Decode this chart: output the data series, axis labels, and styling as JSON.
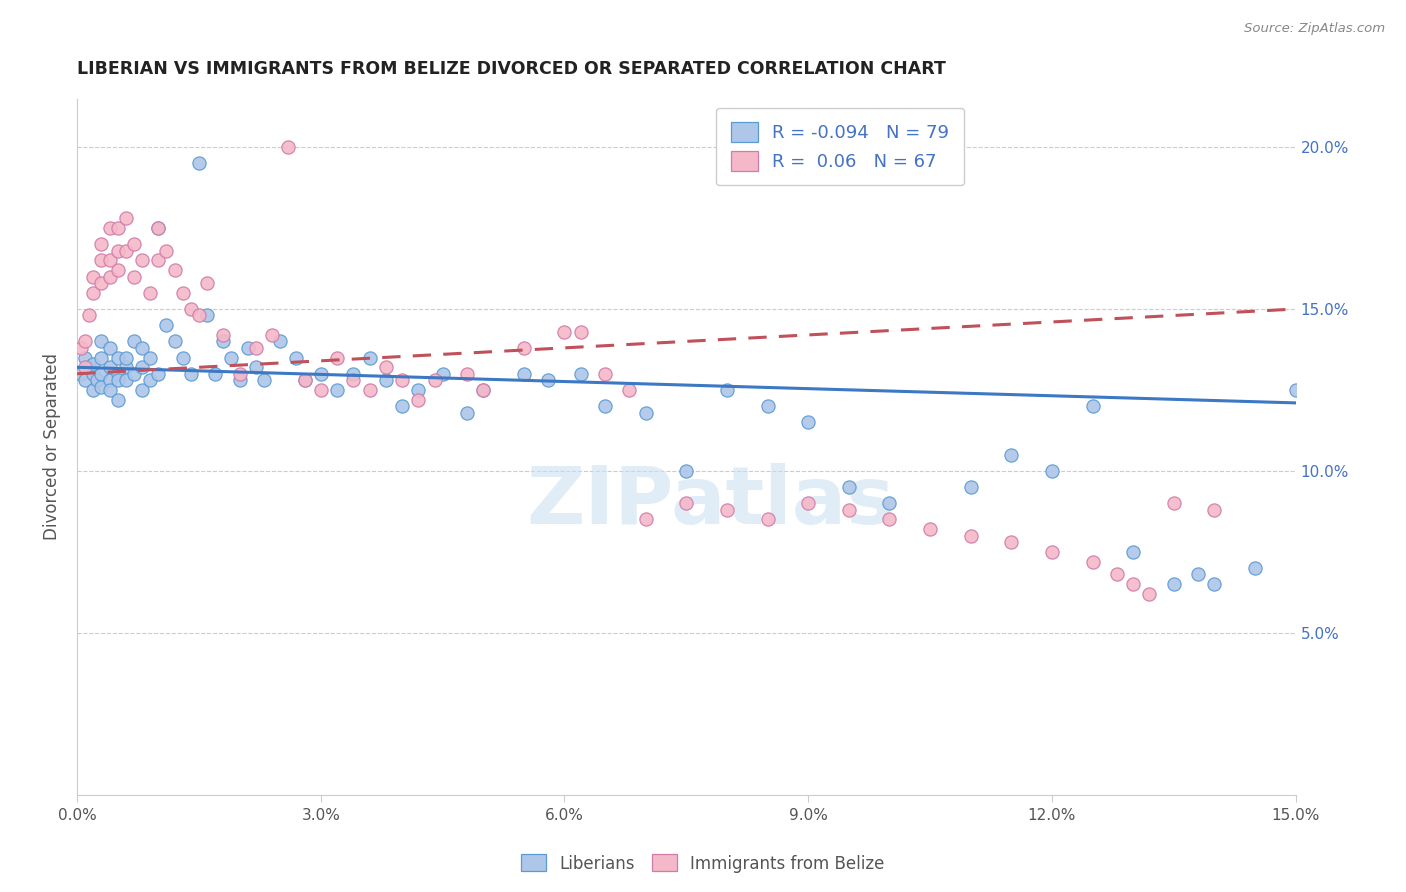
{
  "title": "LIBERIAN VS IMMIGRANTS FROM BELIZE DIVORCED OR SEPARATED CORRELATION CHART",
  "source": "Source: ZipAtlas.com",
  "ylabel": "Divorced or Separated",
  "legend_label1": "Liberians",
  "legend_label2": "Immigrants from Belize",
  "R1": -0.094,
  "N1": 79,
  "R2": 0.06,
  "N2": 67,
  "color1": "#aec6e8",
  "color2": "#f4b8c8",
  "edge1": "#5b9bd5",
  "edge2": "#d17baa",
  "trendline1_color": "#3c78c3",
  "trendline2_color": "#c0505a",
  "xmin": 0.0,
  "xmax": 0.15,
  "ymin": 0.0,
  "ymax": 0.215,
  "x_ticks": [
    0.0,
    0.03,
    0.06,
    0.09,
    0.12,
    0.15
  ],
  "x_tick_labels": [
    "0.0%",
    "3.0%",
    "6.0%",
    "9.0%",
    "12.0%",
    "15.0%"
  ],
  "y_tick_positions": [
    0.05,
    0.1,
    0.15,
    0.2
  ],
  "y_tick_labels": [
    "5.0%",
    "10.0%",
    "15.0%",
    "20.0%"
  ],
  "blue_x": [
    0.0005,
    0.001,
    0.001,
    0.0015,
    0.002,
    0.002,
    0.002,
    0.0025,
    0.003,
    0.003,
    0.003,
    0.003,
    0.004,
    0.004,
    0.004,
    0.004,
    0.005,
    0.005,
    0.005,
    0.005,
    0.006,
    0.006,
    0.006,
    0.007,
    0.007,
    0.008,
    0.008,
    0.008,
    0.009,
    0.009,
    0.01,
    0.01,
    0.011,
    0.012,
    0.013,
    0.014,
    0.015,
    0.016,
    0.017,
    0.018,
    0.019,
    0.02,
    0.021,
    0.022,
    0.023,
    0.025,
    0.027,
    0.028,
    0.03,
    0.032,
    0.034,
    0.036,
    0.038,
    0.04,
    0.042,
    0.045,
    0.048,
    0.05,
    0.055,
    0.058,
    0.062,
    0.065,
    0.07,
    0.075,
    0.08,
    0.085,
    0.09,
    0.095,
    0.1,
    0.11,
    0.115,
    0.12,
    0.125,
    0.13,
    0.135,
    0.138,
    0.14,
    0.145,
    0.15
  ],
  "blue_y": [
    0.13,
    0.128,
    0.135,
    0.132,
    0.125,
    0.13,
    0.133,
    0.128,
    0.13,
    0.126,
    0.135,
    0.14,
    0.128,
    0.132,
    0.138,
    0.125,
    0.13,
    0.135,
    0.128,
    0.122,
    0.132,
    0.128,
    0.135,
    0.13,
    0.14,
    0.125,
    0.138,
    0.132,
    0.128,
    0.135,
    0.13,
    0.175,
    0.145,
    0.14,
    0.135,
    0.13,
    0.195,
    0.148,
    0.13,
    0.14,
    0.135,
    0.128,
    0.138,
    0.132,
    0.128,
    0.14,
    0.135,
    0.128,
    0.13,
    0.125,
    0.13,
    0.135,
    0.128,
    0.12,
    0.125,
    0.13,
    0.118,
    0.125,
    0.13,
    0.128,
    0.13,
    0.12,
    0.118,
    0.1,
    0.125,
    0.12,
    0.115,
    0.095,
    0.09,
    0.095,
    0.105,
    0.1,
    0.12,
    0.075,
    0.065,
    0.068,
    0.065,
    0.07,
    0.125
  ],
  "pink_x": [
    0.0005,
    0.001,
    0.001,
    0.0015,
    0.002,
    0.002,
    0.003,
    0.003,
    0.003,
    0.004,
    0.004,
    0.004,
    0.005,
    0.005,
    0.005,
    0.006,
    0.006,
    0.007,
    0.007,
    0.008,
    0.009,
    0.01,
    0.01,
    0.011,
    0.012,
    0.013,
    0.014,
    0.015,
    0.016,
    0.018,
    0.02,
    0.022,
    0.024,
    0.026,
    0.028,
    0.03,
    0.032,
    0.034,
    0.036,
    0.038,
    0.04,
    0.042,
    0.044,
    0.048,
    0.05,
    0.055,
    0.06,
    0.062,
    0.065,
    0.068,
    0.07,
    0.075,
    0.08,
    0.085,
    0.09,
    0.095,
    0.1,
    0.105,
    0.11,
    0.115,
    0.12,
    0.125,
    0.128,
    0.13,
    0.132,
    0.135,
    0.14
  ],
  "pink_y": [
    0.138,
    0.132,
    0.14,
    0.148,
    0.155,
    0.16,
    0.165,
    0.17,
    0.158,
    0.175,
    0.165,
    0.16,
    0.175,
    0.168,
    0.162,
    0.178,
    0.168,
    0.17,
    0.16,
    0.165,
    0.155,
    0.165,
    0.175,
    0.168,
    0.162,
    0.155,
    0.15,
    0.148,
    0.158,
    0.142,
    0.13,
    0.138,
    0.142,
    0.2,
    0.128,
    0.125,
    0.135,
    0.128,
    0.125,
    0.132,
    0.128,
    0.122,
    0.128,
    0.13,
    0.125,
    0.138,
    0.143,
    0.143,
    0.13,
    0.125,
    0.085,
    0.09,
    0.088,
    0.085,
    0.09,
    0.088,
    0.085,
    0.082,
    0.08,
    0.078,
    0.075,
    0.072,
    0.068,
    0.065,
    0.062,
    0.09,
    0.088
  ],
  "trendline1_start_y": 0.132,
  "trendline1_end_y": 0.121,
  "trendline2_start_y": 0.13,
  "trendline2_end_y": 0.15
}
